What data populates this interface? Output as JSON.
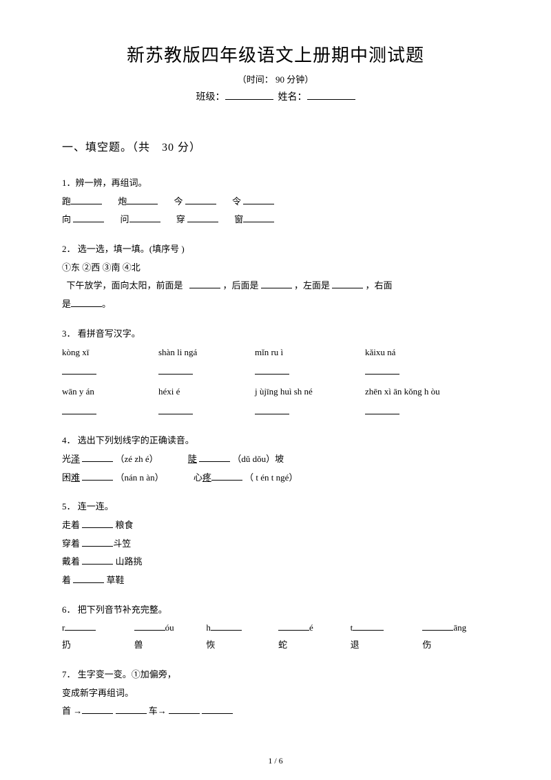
{
  "header": {
    "title": "新苏教版四年级语文上册期中测试题",
    "subtitle": "（时间： 90 分钟）",
    "class_label": "班级：",
    "name_label": "姓名："
  },
  "section1": {
    "heading": "一、填空题。（共　30 分）"
  },
  "q1": {
    "num": "1．",
    "title": "辨一辨，再组词。",
    "row1": [
      "跑",
      "炮",
      "今",
      "令"
    ],
    "row2": [
      "向",
      "问",
      "穿",
      "窗"
    ]
  },
  "q2": {
    "num": "2．",
    "title": "选一选，填一填。(填序号 )",
    "opts": "①东 ②西 ③南 ④北",
    "body1": "下午放学，面向太阳，前面是",
    "body2": "，后面是",
    "body3": "，左面是",
    "body4": "，右面",
    "body5": "是",
    "body6": "。"
  },
  "q3": {
    "num": "3．",
    "title": "看拼音写汉字。",
    "r1": [
      "kòng xī",
      "shàn li ngá",
      "mǐn ru ì",
      "kǎixu ná"
    ],
    "r2": [
      "wān y án",
      "héxi é",
      "j ùjīng huì sh né",
      "zhēn xì ān kǒng h òu"
    ]
  },
  "q4": {
    "num": "4．",
    "title": "选出下列划线字的正确读音。",
    "a1": "光",
    "a1u": "泽",
    "a1p": "（zé zh é）",
    "a2": "陡",
    "a2p": "（dǔ dǒu）坡",
    "b1": "困",
    "b1u": "难",
    "b1p": "（nán  n àn）",
    "b2": "心",
    "b2u": "疼",
    "b2p": "（ t én t ngé）"
  },
  "q5": {
    "num": "5．",
    "title": "连一连。",
    "l1a": "走着",
    "l1b": "粮食",
    "l2a": "穿着",
    "l2b": "斗笠",
    "l3a": "戴着",
    "l3b": "山路挑",
    "l4a": "着",
    "l4b": "草鞋"
  },
  "q6": {
    "num": "6．",
    "title": "把下列音节补充完整。",
    "top": [
      "r",
      "óu",
      "h",
      "é",
      "t",
      "āng"
    ],
    "bot": [
      "扔",
      "兽",
      "恢",
      "蛇",
      "退",
      "伤"
    ]
  },
  "q7": {
    "num": "7．",
    "title": "生字变一变。①加偏旁，",
    "line2": "变成新字再组词。",
    "p1": "首 →",
    "p2": "车→"
  },
  "footer": "1 / 6"
}
